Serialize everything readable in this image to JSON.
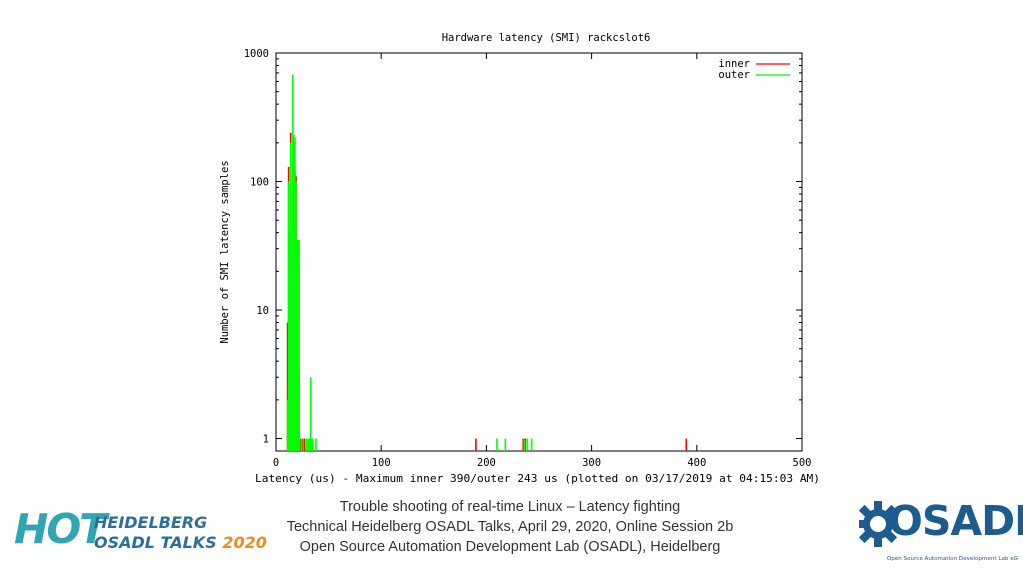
{
  "chart_data": {
    "type": "bar",
    "title": "Hardware latency (SMI) rackcslot6",
    "xlabel": "Latency (us) - Maximum inner 390/outer 243 us (plotted on 03/17/2019 at 04:15:03 AM)",
    "ylabel": "Number of SMI latency samples",
    "xlim": [
      0,
      500
    ],
    "ylim": [
      0.8,
      1000
    ],
    "yscale": "log",
    "xticks": [
      0,
      100,
      200,
      300,
      400,
      500
    ],
    "yticks": [
      1,
      10,
      100,
      1000
    ],
    "xtick_labels": [
      "0",
      "100",
      "200",
      "300",
      "400",
      "500"
    ],
    "ytick_labels": [
      "1",
      "10",
      "100",
      "1000"
    ],
    "legend_position": "top-right",
    "grid": false,
    "series": [
      {
        "name": "inner",
        "color": "#ff0000",
        "points": [
          [
            11,
            8
          ],
          [
            12,
            130
          ],
          [
            13,
            36
          ],
          [
            14,
            240
          ],
          [
            15,
            12
          ],
          [
            16,
            220
          ],
          [
            17,
            190
          ],
          [
            18,
            120
          ],
          [
            19,
            110
          ],
          [
            21,
            35
          ],
          [
            22,
            3
          ],
          [
            23,
            1
          ],
          [
            25,
            1
          ],
          [
            27,
            1
          ],
          [
            29,
            1
          ],
          [
            190,
            1
          ],
          [
            235,
            1
          ],
          [
            236,
            1
          ],
          [
            237,
            1
          ],
          [
            390,
            1
          ]
        ]
      },
      {
        "name": "outer",
        "color": "#00ff00",
        "points": [
          [
            11,
            2
          ],
          [
            12,
            100
          ],
          [
            13,
            40
          ],
          [
            14,
            200
          ],
          [
            15,
            25
          ],
          [
            16,
            680
          ],
          [
            17,
            230
          ],
          [
            18,
            220
          ],
          [
            19,
            100
          ],
          [
            20,
            35
          ],
          [
            21,
            35
          ],
          [
            22,
            35
          ],
          [
            24,
            1
          ],
          [
            26,
            1
          ],
          [
            29,
            1
          ],
          [
            31,
            1
          ],
          [
            32,
            1
          ],
          [
            33,
            3
          ],
          [
            34,
            1
          ],
          [
            35,
            1
          ],
          [
            38,
            1
          ],
          [
            210,
            1
          ],
          [
            218,
            1
          ],
          [
            236,
            1
          ],
          [
            239,
            1
          ],
          [
            243,
            1
          ]
        ]
      }
    ]
  },
  "footer": {
    "line1": "Trouble shooting of real-time Linux – Latency fighting",
    "line2": "Technical Heidelberg OSADL Talks, April 29, 2020, Online Session 2b",
    "line3": "Open Source Automation Development Lab (OSADL), Heidelberg"
  },
  "hot_logo": {
    "big": "HOT",
    "line1": "HEIDELBERG",
    "line2_text": "OSADL TALKS",
    "line2_year": "2020",
    "colors": {
      "teal": "#2fa6b2",
      "blue": "#2b6f9e",
      "orange": "#f08a24"
    }
  },
  "osadl_logo": {
    "word": "OSADL",
    "subtitle": "Open Source Automation Development Lab eG",
    "icon": "gear-icon",
    "color": "#1d5c8e"
  }
}
